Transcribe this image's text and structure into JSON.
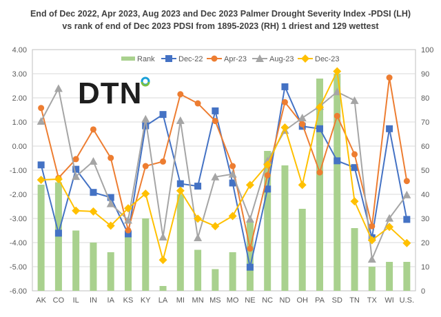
{
  "chart_data": {
    "type": "bar+line",
    "title": "End of Dec 2022, Apr 2023, Aug 2023 and Dec 2023 Palmer Drought Severity Index -PDSI (LH) vs rank of end of Dec 2023 PDSI from 1895-2023 (RH)  1 driest and 129 wettest",
    "logo_text": "DTN",
    "categories": [
      "AK",
      "CO",
      "IL",
      "IN",
      "IA",
      "KS",
      "KY",
      "LA",
      "MI",
      "MN",
      "MS",
      "MO",
      "NE",
      "NC",
      "ND",
      "OH",
      "PA",
      "SD",
      "TN",
      "TX",
      "WI",
      "U.S."
    ],
    "left_axis": {
      "ylim": [
        -6,
        4
      ],
      "ticks": [
        "-6.00",
        "-5.00",
        "-4.00",
        "-3.00",
        "-2.00",
        "-1.00",
        "0.00",
        "1.00",
        "2.00",
        "3.00",
        "4.00"
      ]
    },
    "right_axis": {
      "ylim": [
        0,
        100
      ],
      "ticks": [
        "0",
        "10",
        "20",
        "30",
        "40",
        "50",
        "60",
        "70",
        "80",
        "90",
        "100"
      ]
    },
    "grid": true,
    "legend_position": "top",
    "bar_series": {
      "name": "Rank",
      "axis": "right",
      "color": "#a9d18e",
      "values": [
        44,
        45,
        25,
        20,
        16,
        23,
        30,
        2,
        40,
        17,
        9,
        16,
        29,
        58,
        52,
        34,
        88,
        90,
        26,
        10,
        12,
        12
      ]
    },
    "series": [
      {
        "name": "Dec-22",
        "color": "#4472c4",
        "marker": "square",
        "values": [
          -0.78,
          -3.61,
          -0.96,
          -1.92,
          -2.13,
          -3.64,
          0.84,
          1.31,
          -1.56,
          -1.66,
          1.46,
          -1.53,
          -5.02,
          -1.78,
          2.46,
          0.82,
          0.72,
          -0.61,
          -0.89,
          -3.8,
          0.72,
          -3.04
        ]
      },
      {
        "name": "Apr-23",
        "color": "#ed7d31",
        "marker": "circle",
        "values": [
          1.58,
          -1.32,
          -0.54,
          0.69,
          -0.49,
          -3.49,
          -0.83,
          -0.64,
          2.15,
          1.77,
          1.04,
          -0.83,
          -4.25,
          -1.21,
          1.82,
          0.91,
          -1.09,
          1.25,
          -0.34,
          -3.32,
          2.84,
          -1.45
        ]
      },
      {
        "name": "Aug-23",
        "color": "#a5a5a5",
        "marker": "triangle",
        "values": [
          1.03,
          2.39,
          -1.26,
          -0.63,
          -2.39,
          -3.07,
          1.12,
          -3.77,
          1.06,
          -3.8,
          -1.28,
          -1.16,
          -3.03,
          -0.61,
          0.65,
          1.17,
          1.65,
          2.25,
          1.89,
          -4.69,
          -2.99,
          -2.02
        ]
      },
      {
        "name": "Dec-23",
        "color": "#ffc000",
        "marker": "diamond",
        "values": [
          -1.4,
          -1.37,
          -2.68,
          -2.71,
          -3.3,
          -2.58,
          -1.97,
          -4.72,
          -1.85,
          -3.01,
          -3.32,
          -2.9,
          -1.61,
          -0.77,
          0.77,
          -1.61,
          1.61,
          3.1,
          -2.29,
          -3.9,
          -3.35,
          -4.02
        ]
      }
    ]
  }
}
